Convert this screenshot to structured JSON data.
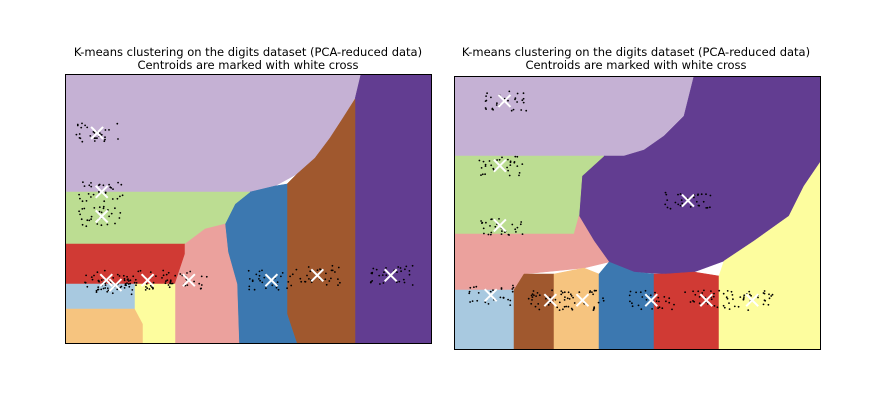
{
  "chart_data": [
    {
      "type": "heatmap",
      "title": "K-means clustering on the digits dataset (PCA-reduced data)",
      "subtitle": "Centroids are marked with white cross",
      "xlabel": "",
      "ylabel": "",
      "ticks": "none",
      "xlim": [
        -40,
        40
      ],
      "ylim": [
        -10,
        45
      ],
      "palette": [
        "#c5b1d4",
        "#bcdd92",
        "#d03a34",
        "#a8c9e0",
        "#f6c47f",
        "#fdfd9e",
        "#eba19d",
        "#3c78b0",
        "#a0582e",
        "#623d91"
      ],
      "regions": [
        {
          "cluster": 0,
          "name": "top",
          "color": "#c5b1d4"
        },
        {
          "cluster": 1,
          "name": "green",
          "color": "#bcdd92"
        },
        {
          "cluster": 2,
          "name": "red",
          "color": "#d03a34"
        },
        {
          "cluster": 3,
          "name": "lightblue",
          "color": "#a8c9e0"
        },
        {
          "cluster": 4,
          "name": "orange",
          "color": "#f6c47f"
        },
        {
          "cluster": 5,
          "name": "yellow",
          "color": "#fdfd9e"
        },
        {
          "cluster": 6,
          "name": "pink",
          "color": "#eba19d"
        },
        {
          "cluster": 7,
          "name": "blue",
          "color": "#3c78b0"
        },
        {
          "cluster": 8,
          "name": "brown",
          "color": "#a0582e"
        },
        {
          "cluster": 9,
          "name": "purple",
          "color": "#623d91"
        }
      ],
      "centroids": [
        {
          "x": -33,
          "y": 33
        },
        {
          "x": -32,
          "y": 21
        },
        {
          "x": -32,
          "y": 16
        },
        {
          "x": -31,
          "y": 3
        },
        {
          "x": -29,
          "y": 2
        },
        {
          "x": -22,
          "y": 3
        },
        {
          "x": -13,
          "y": 3
        },
        {
          "x": 5,
          "y": 3
        },
        {
          "x": 15,
          "y": 4
        },
        {
          "x": 31,
          "y": 4
        }
      ],
      "points_description": "sample points (dots)"
    },
    {
      "type": "heatmap",
      "title": "K-means clustering on the digits dataset (PCA-reduced data)",
      "subtitle": "Centroids are marked with white cross",
      "xlabel": "",
      "ylabel": "",
      "ticks": "none",
      "xlim": [
        -40,
        40
      ],
      "ylim": [
        -10,
        45
      ],
      "palette": [
        "#c5b1d4",
        "#bcdd92",
        "#eba19d",
        "#a8c9e0",
        "#a0582e",
        "#f6c47f",
        "#3c78b0",
        "#d03a34",
        "#fdfd9e",
        "#623d91"
      ],
      "regions": [
        {
          "cluster": 0,
          "name": "top",
          "color": "#c5b1d4"
        },
        {
          "cluster": 1,
          "name": "green",
          "color": "#bcdd92"
        },
        {
          "cluster": 2,
          "name": "pink",
          "color": "#eba19d"
        },
        {
          "cluster": 3,
          "name": "lightblue",
          "color": "#a8c9e0"
        },
        {
          "cluster": 4,
          "name": "brown",
          "color": "#a0582e"
        },
        {
          "cluster": 5,
          "name": "orange",
          "color": "#f6c47f"
        },
        {
          "cluster": 6,
          "name": "blue",
          "color": "#3c78b0"
        },
        {
          "cluster": 7,
          "name": "red",
          "color": "#d03a34"
        },
        {
          "cluster": 8,
          "name": "yellow",
          "color": "#fdfd9e"
        },
        {
          "cluster": 9,
          "name": "purple",
          "color": "#623d91"
        }
      ],
      "centroids": [
        {
          "x": -29,
          "y": 40
        },
        {
          "x": -30,
          "y": 27
        },
        {
          "x": -30,
          "y": 15
        },
        {
          "x": -32,
          "y": 1
        },
        {
          "x": -19,
          "y": 0
        },
        {
          "x": -12,
          "y": 0
        },
        {
          "x": 3,
          "y": 0
        },
        {
          "x": 15,
          "y": 0
        },
        {
          "x": 11,
          "y": 20
        },
        {
          "x": 25,
          "y": 0
        }
      ],
      "points_description": "sample points (dots)"
    }
  ]
}
